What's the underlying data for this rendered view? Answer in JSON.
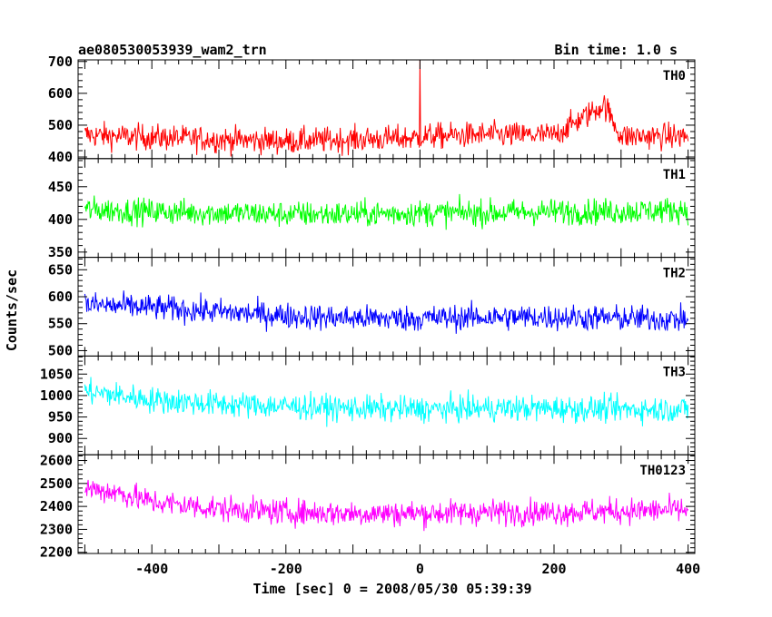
{
  "chart_data": {
    "type": "line",
    "title": "ae080530053939_wam2_trn",
    "subtitle": "Bin time: 1.0 s",
    "xlabel": "Time [sec] 0 = 2008/05/30 05:39:39",
    "ylabel": "Counts/sec",
    "xlim": [
      -510,
      410
    ],
    "x_ticks": [
      -400,
      -200,
      0,
      200,
      400
    ],
    "bin_time_s": 1.0,
    "grid": false,
    "panels": [
      {
        "name": "TH0",
        "color": "#ff0000",
        "ylim": [
          395,
          705
        ],
        "y_ticks": [
          400,
          500,
          600,
          700
        ],
        "samples": [
          {
            "x": -500,
            "y": 470
          },
          {
            "x": -450,
            "y": 465
          },
          {
            "x": -400,
            "y": 462
          },
          {
            "x": -300,
            "y": 455
          },
          {
            "x": -200,
            "y": 450
          },
          {
            "x": -100,
            "y": 455
          },
          {
            "x": -1,
            "y": 460
          },
          {
            "x": 0,
            "y": 705
          },
          {
            "x": 1,
            "y": 465
          },
          {
            "x": 100,
            "y": 470
          },
          {
            "x": 200,
            "y": 468
          },
          {
            "x": 275,
            "y": 565
          },
          {
            "x": 300,
            "y": 465
          },
          {
            "x": 400,
            "y": 465
          }
        ]
      },
      {
        "name": "TH1",
        "color": "#00ff00",
        "ylim": [
          342,
          493
        ],
        "y_ticks": [
          350,
          400,
          450
        ],
        "samples": [
          {
            "x": -500,
            "y": 415
          },
          {
            "x": -400,
            "y": 412
          },
          {
            "x": -300,
            "y": 410
          },
          {
            "x": -200,
            "y": 408
          },
          {
            "x": -100,
            "y": 408
          },
          {
            "x": 0,
            "y": 410
          },
          {
            "x": 100,
            "y": 410
          },
          {
            "x": 200,
            "y": 412
          },
          {
            "x": 300,
            "y": 412
          },
          {
            "x": 400,
            "y": 415
          }
        ]
      },
      {
        "name": "TH2",
        "color": "#0000ff",
        "ylim": [
          490,
          673
        ],
        "y_ticks": [
          500,
          550,
          600,
          650
        ],
        "samples": [
          {
            "x": -500,
            "y": 585
          },
          {
            "x": -400,
            "y": 580
          },
          {
            "x": -300,
            "y": 572
          },
          {
            "x": -200,
            "y": 565
          },
          {
            "x": -100,
            "y": 560
          },
          {
            "x": 0,
            "y": 560
          },
          {
            "x": 100,
            "y": 562
          },
          {
            "x": 200,
            "y": 562
          },
          {
            "x": 300,
            "y": 560
          },
          {
            "x": 400,
            "y": 558
          }
        ]
      },
      {
        "name": "TH3",
        "color": "#00ffff",
        "ylim": [
          862,
          1092
        ],
        "y_ticks": [
          900,
          950,
          1000,
          1050
        ],
        "samples": [
          {
            "x": -500,
            "y": 1010
          },
          {
            "x": -400,
            "y": 990
          },
          {
            "x": -300,
            "y": 980
          },
          {
            "x": -200,
            "y": 975
          },
          {
            "x": -100,
            "y": 970
          },
          {
            "x": 0,
            "y": 968
          },
          {
            "x": 100,
            "y": 970
          },
          {
            "x": 200,
            "y": 970
          },
          {
            "x": 300,
            "y": 968
          },
          {
            "x": 400,
            "y": 968
          }
        ]
      },
      {
        "name": "TH0123",
        "color": "#ff00ff",
        "ylim": [
          2195,
          2625
        ],
        "y_ticks": [
          2200,
          2300,
          2400,
          2500,
          2600
        ],
        "samples": [
          {
            "x": -500,
            "y": 2480
          },
          {
            "x": -450,
            "y": 2460
          },
          {
            "x": -400,
            "y": 2420
          },
          {
            "x": -300,
            "y": 2390
          },
          {
            "x": -200,
            "y": 2375
          },
          {
            "x": -100,
            "y": 2370
          },
          {
            "x": 0,
            "y": 2370
          },
          {
            "x": 100,
            "y": 2375
          },
          {
            "x": 200,
            "y": 2375
          },
          {
            "x": 300,
            "y": 2380
          },
          {
            "x": 400,
            "y": 2385
          }
        ]
      }
    ]
  }
}
